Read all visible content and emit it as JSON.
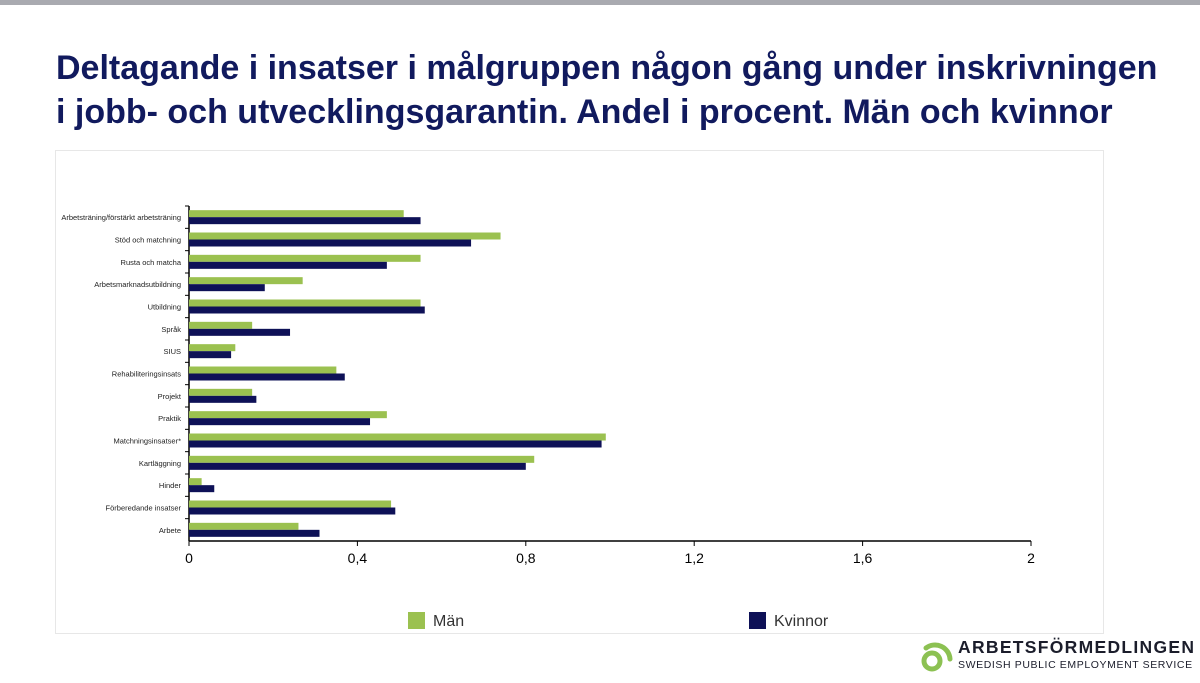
{
  "title": "Deltagande i insatser i målgruppen någon gång under inskrivningen i jobb- och utvecklingsgarantin. Andel i procent. Män och kvinnor",
  "colors": {
    "man": "#9bc150",
    "kvinnor": "#0e1157",
    "title": "#111a5e",
    "logo": "#8cc152"
  },
  "chart_data": {
    "type": "bar",
    "orientation": "horizontal",
    "categories": [
      "Arbetsträning/förstärkt arbetsträning",
      "Stöd och matchning",
      "Rusta och matcha",
      "Arbetsmarknadsutbildning",
      "Utbildning",
      "Språk",
      "SIUS",
      "Rehabiliteringsinsats",
      "Projekt",
      "Praktik",
      "Matchningsinsatser*",
      "Kartläggning",
      "Hinder",
      "Förberedande insatser",
      "Arbete"
    ],
    "series": [
      {
        "name": "Män",
        "color": "#9bc150",
        "values": [
          0.51,
          0.74,
          0.55,
          0.27,
          0.55,
          0.15,
          0.11,
          0.35,
          0.15,
          0.47,
          0.99,
          0.82,
          0.03,
          0.48,
          0.26
        ]
      },
      {
        "name": "Kvinnor",
        "color": "#0e1157",
        "values": [
          0.55,
          0.67,
          0.47,
          0.18,
          0.56,
          0.24,
          0.1,
          0.37,
          0.16,
          0.43,
          0.98,
          0.8,
          0.06,
          0.49,
          0.31
        ]
      }
    ],
    "xlim": [
      0,
      2
    ],
    "xticks": [
      "0",
      "0,4",
      "0,8",
      "1,2",
      "1,6",
      "2"
    ],
    "xlabel": "",
    "ylabel": "",
    "legend_position": "bottom",
    "grid": false
  },
  "logo": {
    "name": "ARBETSFÖRMEDLINGEN",
    "subtitle": "SWEDISH PUBLIC EMPLOYMENT SERVICE"
  }
}
